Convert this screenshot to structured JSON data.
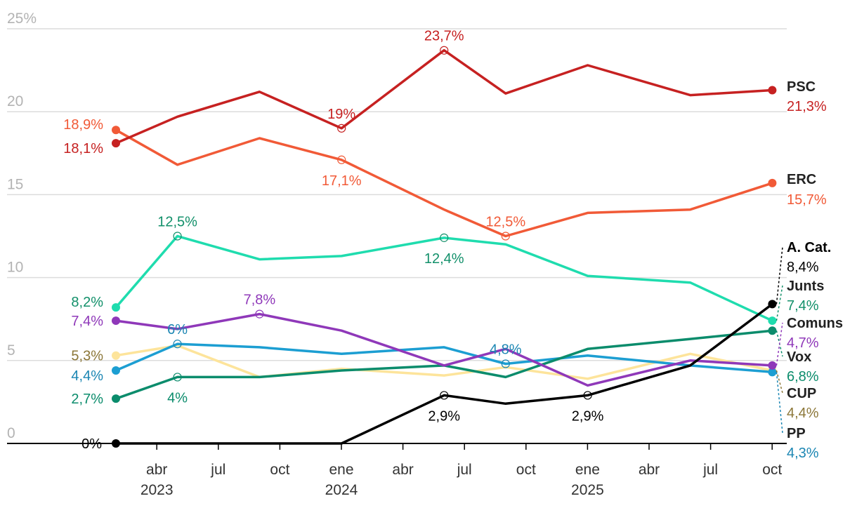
{
  "chart_data": {
    "type": "line",
    "ylim": [
      0,
      25
    ],
    "y_ticks": [
      {
        "value": 0,
        "label": "0"
      },
      {
        "value": 5,
        "label": "5"
      },
      {
        "value": 10,
        "label": "10"
      },
      {
        "value": 15,
        "label": "15"
      },
      {
        "value": 20,
        "label": "20"
      },
      {
        "value": 25,
        "label": "25%"
      }
    ],
    "x_ticks": [
      {
        "date": "2023-04",
        "label": "abr",
        "year": "2023"
      },
      {
        "date": "2023-07",
        "label": "jul",
        "year": ""
      },
      {
        "date": "2023-10",
        "label": "oct",
        "year": ""
      },
      {
        "date": "2024-01",
        "label": "ene",
        "year": "2024"
      },
      {
        "date": "2024-04",
        "label": "abr",
        "year": ""
      },
      {
        "date": "2024-07",
        "label": "jul",
        "year": ""
      },
      {
        "date": "2024-10",
        "label": "oct",
        "year": ""
      },
      {
        "date": "2025-01",
        "label": "ene",
        "year": "2025"
      },
      {
        "date": "2025-04",
        "label": "abr",
        "year": ""
      },
      {
        "date": "2025-07",
        "label": "jul",
        "year": ""
      },
      {
        "date": "2025-10",
        "label": "oct",
        "year": ""
      }
    ],
    "x": [
      "2023-03",
      "2023-06",
      "2023-10",
      "2024-02",
      "2024-07",
      "2024-10",
      "2025-02",
      "2025-07",
      "2025-11"
    ],
    "grid": true,
    "series": [
      {
        "name": "PSC",
        "color": "#c62121",
        "end_label": "21,3%",
        "values": [
          18.1,
          19.7,
          21.2,
          19.0,
          23.7,
          21.1,
          22.8,
          21.0,
          21.3
        ],
        "labels": [
          {
            "i": 0,
            "text": "18,1%",
            "pos": "left-below"
          },
          {
            "i": 3,
            "text": "19%",
            "pos": "above"
          },
          {
            "i": 4,
            "text": "23,7%",
            "pos": "above"
          }
        ]
      },
      {
        "name": "ERC",
        "color": "#f15a37",
        "end_label": "15,7%",
        "values": [
          18.9,
          16.8,
          18.4,
          17.1,
          14.1,
          12.5,
          13.9,
          14.1,
          15.7
        ],
        "labels": [
          {
            "i": 0,
            "text": "18,9%",
            "pos": "left-above"
          },
          {
            "i": 3,
            "text": "17,1%",
            "pos": "below"
          },
          {
            "i": 5,
            "text": "12,5%",
            "pos": "above"
          }
        ]
      },
      {
        "name": "Junts",
        "color": "#1fdcae",
        "label_color": "#12906a",
        "end_label": "7,4%",
        "values": [
          8.2,
          12.5,
          11.1,
          11.3,
          12.4,
          12.0,
          10.1,
          9.7,
          7.4
        ],
        "labels": [
          {
            "i": 0,
            "text": "8,2%",
            "pos": "left-above"
          },
          {
            "i": 1,
            "text": "12,5%",
            "pos": "above"
          },
          {
            "i": 4,
            "text": "12,4%",
            "pos": "below"
          }
        ]
      },
      {
        "name": "Comuns",
        "color": "#8f38b9",
        "end_label": "4,7%",
        "values": [
          7.4,
          6.9,
          7.8,
          6.8,
          4.7,
          5.7,
          3.5,
          5.0,
          4.7
        ],
        "labels": [
          {
            "i": 0,
            "text": "7,4%",
            "pos": "left"
          },
          {
            "i": 2,
            "text": "7,8%",
            "pos": "above"
          }
        ]
      },
      {
        "name": "CUP",
        "color": "#fde49b",
        "label_color": "#8c7738",
        "end_label": "4,4%",
        "values": [
          5.3,
          5.9,
          4.0,
          4.5,
          4.1,
          4.6,
          3.9,
          5.4,
          4.4
        ],
        "labels": [
          {
            "i": 0,
            "text": "5,3%",
            "pos": "left"
          }
        ]
      },
      {
        "name": "PP",
        "color": "#1c9ed2",
        "label_color": "#1b86b3",
        "end_label": "4,3%",
        "values": [
          4.4,
          6.0,
          5.8,
          5.4,
          5.8,
          4.8,
          5.3,
          4.7,
          4.3
        ],
        "labels": [
          {
            "i": 0,
            "text": "4,4%",
            "pos": "left-below"
          },
          {
            "i": 1,
            "text": "6%",
            "pos": "above"
          },
          {
            "i": 5,
            "text": "4,8%",
            "pos": "above"
          }
        ]
      },
      {
        "name": "Vox",
        "color": "#0b8c6c",
        "end_label": "6,8%",
        "values": [
          2.7,
          4.0,
          4.0,
          4.4,
          4.7,
          4.0,
          5.7,
          6.3,
          6.8
        ],
        "labels": [
          {
            "i": 0,
            "text": "2,7%",
            "pos": "left"
          },
          {
            "i": 1,
            "text": "4%",
            "pos": "below"
          }
        ]
      },
      {
        "name": "A. Cat.",
        "color": "#000000",
        "end_label": "8,4%",
        "values": [
          0,
          0,
          0,
          0,
          2.9,
          2.4,
          2.9,
          4.7,
          8.4
        ],
        "labels": [
          {
            "i": 0,
            "text": "0%",
            "pos": "left"
          },
          {
            "i": 4,
            "text": "2,9%",
            "pos": "below"
          },
          {
            "i": 6,
            "text": "2,9%",
            "pos": "below"
          }
        ]
      }
    ]
  }
}
